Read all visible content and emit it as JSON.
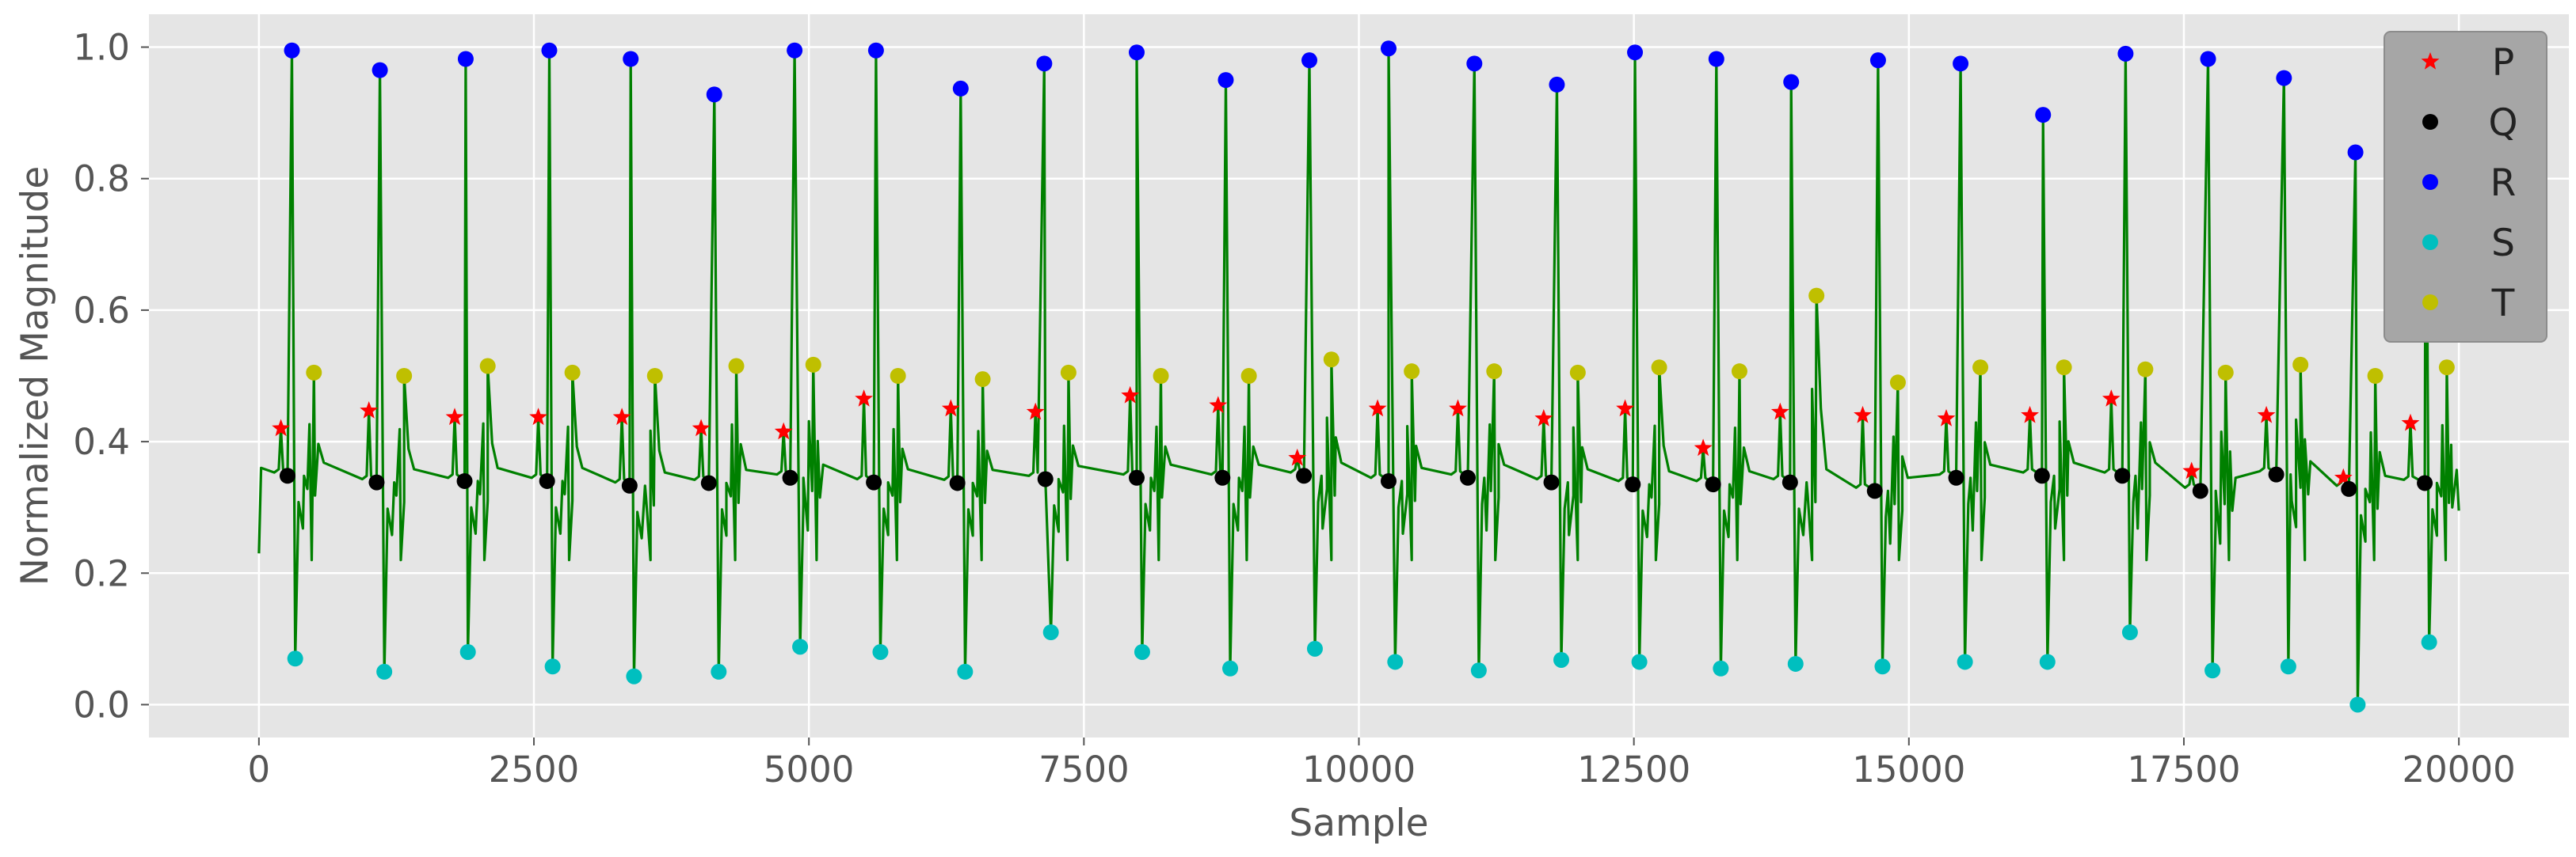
{
  "chart_data": {
    "type": "line",
    "xlabel": "Sample",
    "ylabel": "Normalized Magnitude",
    "xlim": [
      -1000,
      21000
    ],
    "ylim": [
      -0.05,
      1.05
    ],
    "xticks": [
      0,
      2500,
      5000,
      7500,
      10000,
      12500,
      15000,
      17500,
      20000
    ],
    "xtick_labels": [
      "0",
      "2500",
      "5000",
      "7500",
      "10000",
      "12500",
      "15000",
      "17500",
      "20000"
    ],
    "yticks": [
      0.0,
      0.2,
      0.4,
      0.6,
      0.8,
      1.0
    ],
    "ytick_labels": [
      "0.0",
      "0.2",
      "0.4",
      "0.6",
      "0.8",
      "1.0"
    ],
    "grid": true,
    "legend_position": "top-right",
    "colors": {
      "background": "#e5e5e5",
      "grid": "#ffffff",
      "signal": "#008000",
      "P": "#ff0000",
      "Q": "#000000",
      "R": "#0000ff",
      "S": "#00bfbf",
      "T": "#bfbf00"
    },
    "series": [
      {
        "name": "P",
        "marker": "star",
        "points": [
          [
            200,
            0.42
          ],
          [
            1000,
            0.447
          ],
          [
            1780,
            0.437
          ],
          [
            2540,
            0.437
          ],
          [
            3300,
            0.437
          ],
          [
            4020,
            0.42
          ],
          [
            4770,
            0.415
          ],
          [
            5500,
            0.465
          ],
          [
            6290,
            0.45
          ],
          [
            7060,
            0.445
          ],
          [
            7920,
            0.47
          ],
          [
            8720,
            0.455
          ],
          [
            9440,
            0.375
          ],
          [
            10170,
            0.45
          ],
          [
            10900,
            0.45
          ],
          [
            11680,
            0.435
          ],
          [
            12420,
            0.45
          ],
          [
            13130,
            0.39
          ],
          [
            13830,
            0.445
          ],
          [
            14580,
            0.44
          ],
          [
            15340,
            0.435
          ],
          [
            16100,
            0.44
          ],
          [
            16840,
            0.465
          ],
          [
            17570,
            0.355
          ],
          [
            18250,
            0.44
          ],
          [
            18950,
            0.345
          ],
          [
            19560,
            0.428
          ]
        ]
      },
      {
        "name": "Q",
        "marker": "circle",
        "points": [
          [
            260,
            0.348
          ],
          [
            1070,
            0.338
          ],
          [
            1870,
            0.34
          ],
          [
            2620,
            0.34
          ],
          [
            3370,
            0.333
          ],
          [
            4090,
            0.337
          ],
          [
            4830,
            0.345
          ],
          [
            5590,
            0.338
          ],
          [
            6350,
            0.337
          ],
          [
            7150,
            0.343
          ],
          [
            7980,
            0.345
          ],
          [
            8760,
            0.345
          ],
          [
            9500,
            0.348
          ],
          [
            10270,
            0.34
          ],
          [
            10990,
            0.345
          ],
          [
            11750,
            0.338
          ],
          [
            12490,
            0.335
          ],
          [
            13220,
            0.335
          ],
          [
            13920,
            0.338
          ],
          [
            14690,
            0.325
          ],
          [
            15430,
            0.345
          ],
          [
            16210,
            0.348
          ],
          [
            16940,
            0.348
          ],
          [
            17650,
            0.325
          ],
          [
            18340,
            0.35
          ],
          [
            19000,
            0.328
          ],
          [
            19690,
            0.337
          ]
        ]
      },
      {
        "name": "R",
        "marker": "circle",
        "points": [
          [
            300,
            0.995
          ],
          [
            1100,
            0.965
          ],
          [
            1880,
            0.982
          ],
          [
            2640,
            0.995
          ],
          [
            3380,
            0.982
          ],
          [
            4140,
            0.928
          ],
          [
            4870,
            0.995
          ],
          [
            5610,
            0.995
          ],
          [
            6380,
            0.937
          ],
          [
            7140,
            0.975
          ],
          [
            7980,
            0.992
          ],
          [
            8790,
            0.95
          ],
          [
            9550,
            0.98
          ],
          [
            10270,
            0.998
          ],
          [
            11050,
            0.975
          ],
          [
            11800,
            0.943
          ],
          [
            12510,
            0.992
          ],
          [
            13250,
            0.982
          ],
          [
            13930,
            0.947
          ],
          [
            14720,
            0.98
          ],
          [
            15470,
            0.975
          ],
          [
            16220,
            0.897
          ],
          [
            16970,
            0.99
          ],
          [
            17720,
            0.982
          ],
          [
            18410,
            0.953
          ],
          [
            19060,
            0.84
          ],
          [
            19700,
            0.985
          ]
        ]
      },
      {
        "name": "S",
        "marker": "circle",
        "points": [
          [
            330,
            0.07
          ],
          [
            1140,
            0.05
          ],
          [
            1900,
            0.08
          ],
          [
            2670,
            0.058
          ],
          [
            3410,
            0.043
          ],
          [
            4180,
            0.05
          ],
          [
            4920,
            0.088
          ],
          [
            5650,
            0.08
          ],
          [
            6420,
            0.05
          ],
          [
            7200,
            0.11
          ],
          [
            8030,
            0.08
          ],
          [
            8830,
            0.055
          ],
          [
            9600,
            0.085
          ],
          [
            10330,
            0.065
          ],
          [
            11090,
            0.052
          ],
          [
            11840,
            0.068
          ],
          [
            12550,
            0.065
          ],
          [
            13290,
            0.055
          ],
          [
            13970,
            0.062
          ],
          [
            14760,
            0.058
          ],
          [
            15510,
            0.065
          ],
          [
            16260,
            0.065
          ],
          [
            17010,
            0.11
          ],
          [
            17760,
            0.052
          ],
          [
            18450,
            0.058
          ],
          [
            19080,
            0.0
          ],
          [
            19730,
            0.095
          ]
        ]
      },
      {
        "name": "T",
        "marker": "circle",
        "points": [
          [
            500,
            0.505
          ],
          [
            1320,
            0.5
          ],
          [
            2080,
            0.515
          ],
          [
            2850,
            0.505
          ],
          [
            3600,
            0.5
          ],
          [
            4340,
            0.515
          ],
          [
            5040,
            0.517
          ],
          [
            5810,
            0.5
          ],
          [
            6580,
            0.495
          ],
          [
            7360,
            0.505
          ],
          [
            8200,
            0.5
          ],
          [
            9000,
            0.5
          ],
          [
            9750,
            0.525
          ],
          [
            10480,
            0.507
          ],
          [
            11230,
            0.507
          ],
          [
            11990,
            0.505
          ],
          [
            12730,
            0.513
          ],
          [
            13460,
            0.507
          ],
          [
            14160,
            0.622
          ],
          [
            14900,
            0.49
          ],
          [
            15650,
            0.513
          ],
          [
            16410,
            0.513
          ],
          [
            17150,
            0.51
          ],
          [
            17880,
            0.505
          ],
          [
            18560,
            0.517
          ],
          [
            19240,
            0.5
          ],
          [
            19890,
            0.513
          ]
        ]
      }
    ]
  }
}
